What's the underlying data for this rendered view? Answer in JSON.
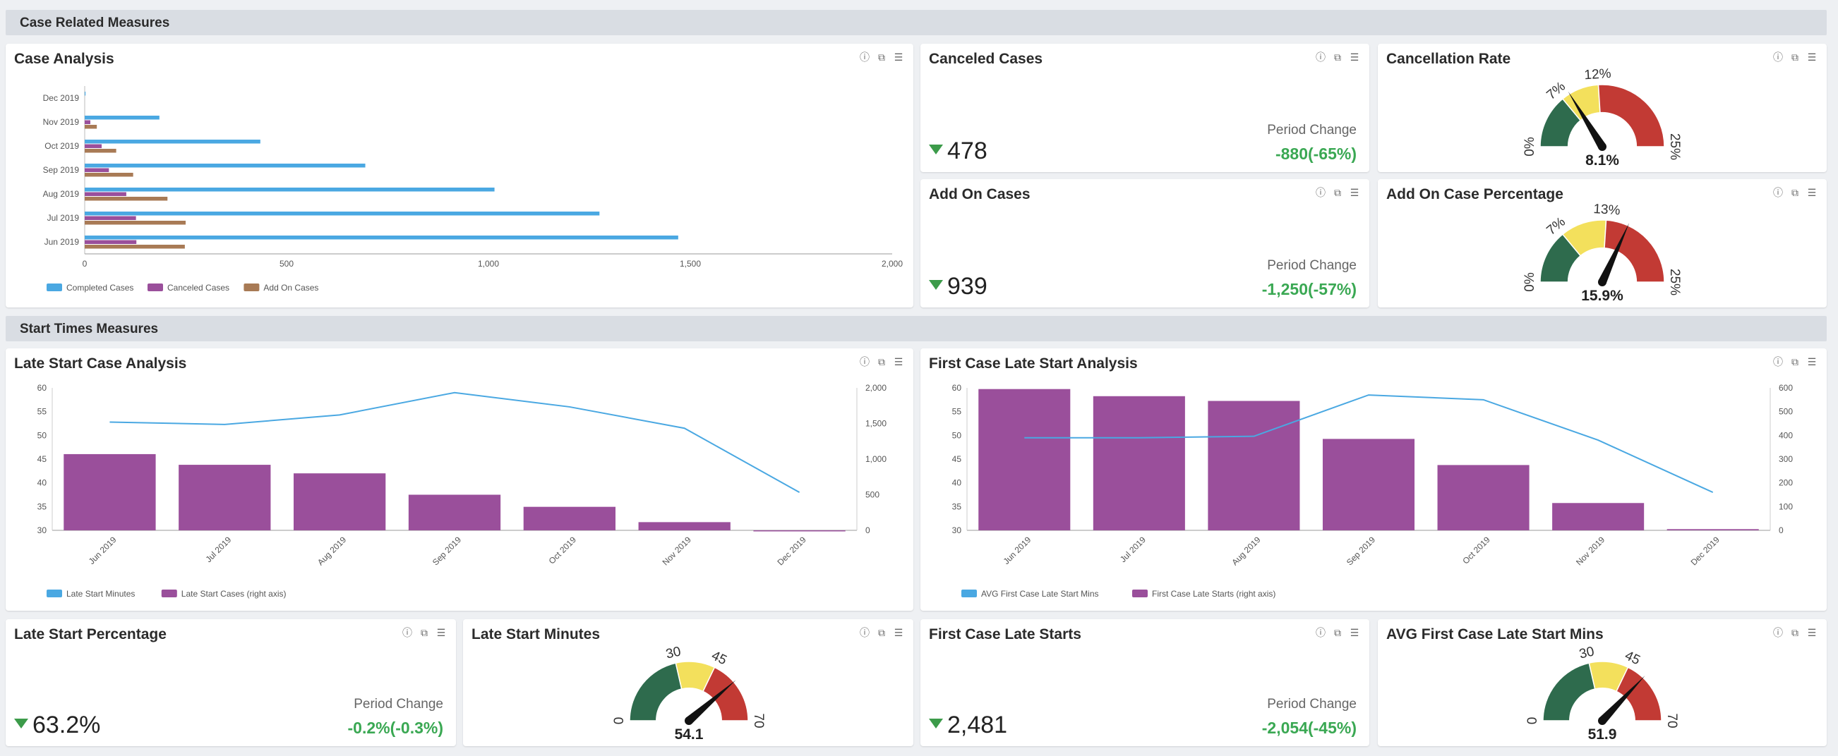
{
  "sections": {
    "case_related": "Case Related Measures",
    "start_times": "Start Times Measures"
  },
  "icons": [
    "info-icon",
    "copy-icon",
    "database-icon"
  ],
  "colors": {
    "blue": "#4aa8e2",
    "purple": "#9a4f9b",
    "brown": "#a87a55",
    "green": "#2e6b4d",
    "yellow": "#f3e05c",
    "red": "#c23a34",
    "positive": "#3aa853"
  },
  "case_analysis": {
    "title": "Case Analysis",
    "chart_data": {
      "type": "bar",
      "orientation": "horizontal",
      "categories": [
        "Dec 2019",
        "Nov 2019",
        "Oct 2019",
        "Sep 2019",
        "Aug 2019",
        "Jul 2019",
        "Jun 2019"
      ],
      "series": [
        {
          "name": "Completed Cases",
          "values": [
            2,
            185,
            435,
            695,
            1015,
            1275,
            1470
          ]
        },
        {
          "name": "Canceled Cases",
          "values": [
            0,
            14,
            42,
            60,
            103,
            127,
            128
          ]
        },
        {
          "name": "Add On Cases",
          "values": [
            0,
            30,
            78,
            120,
            205,
            250,
            248
          ]
        }
      ],
      "xlim": [
        0,
        2000
      ],
      "xticks": [
        "0",
        "500",
        "1,000",
        "1,500",
        "2,000"
      ],
      "legend": "bottom-left"
    }
  },
  "canceled_cases": {
    "title": "Canceled Cases",
    "value": "478",
    "period_change_label": "Period Change",
    "period_change": "-880(-65%)"
  },
  "add_on_cases": {
    "title": "Add On Cases",
    "value": "939",
    "period_change_label": "Period Change",
    "period_change": "-1,250(-57%)"
  },
  "cancellation_rate": {
    "title": "Cancellation Rate",
    "min": 0,
    "max": 25,
    "band1": 7,
    "band2": 12,
    "value": 8.1,
    "labels": {
      "min": "0%",
      "band1": "7%",
      "band2": "12%",
      "max": "25%",
      "value": "8.1%"
    }
  },
  "add_on_case_percentage": {
    "title": "Add On Case Percentage",
    "min": 0,
    "max": 25,
    "band1": 7,
    "band2": 13,
    "value": 15.9,
    "labels": {
      "min": "0%",
      "band1": "7%",
      "band2": "13%",
      "max": "25%",
      "value": "15.9%"
    }
  },
  "late_start_case_analysis": {
    "title": "Late Start Case Analysis",
    "chart_data": {
      "type": "bar",
      "categories": [
        "Jun 2019",
        "Jul 2019",
        "Aug 2019",
        "Sep 2019",
        "Oct 2019",
        "Nov 2019",
        "Dec 2019"
      ],
      "series": [
        {
          "name": "Late Start Cases (right axis)",
          "type": "bar",
          "axis": "right",
          "values": [
            1070,
            920,
            800,
            500,
            330,
            115,
            0
          ]
        },
        {
          "name": "Late Start Minutes",
          "type": "line",
          "axis": "left",
          "values": [
            52.8,
            52.3,
            54.3,
            59,
            56,
            51.5,
            38
          ]
        }
      ],
      "ylim_left": [
        30,
        60
      ],
      "yticks_left": [
        "30",
        "35",
        "40",
        "45",
        "50",
        "55",
        "60"
      ],
      "ylim_right": [
        0,
        2000
      ],
      "yticks_right": [
        "0",
        "500",
        "1,000",
        "1,500",
        "2,000"
      ],
      "legend": "bottom-left"
    }
  },
  "first_case_late_start_analysis": {
    "title": "First Case Late Start Analysis",
    "chart_data": {
      "type": "bar",
      "categories": [
        "Jun 2019",
        "Jul 2019",
        "Aug 2019",
        "Sep 2019",
        "Oct 2019",
        "Nov 2019",
        "Dec 2019"
      ],
      "series": [
        {
          "name": "First Case Late Starts (right axis)",
          "type": "bar",
          "axis": "right",
          "values": [
            595,
            565,
            545,
            385,
            275,
            115,
            5
          ]
        },
        {
          "name": "AVG First Case Late Start Mins",
          "type": "line",
          "axis": "left",
          "values": [
            49.5,
            49.5,
            49.8,
            58.5,
            57.5,
            49,
            38
          ]
        }
      ],
      "ylim_left": [
        30,
        60
      ],
      "yticks_left": [
        "30",
        "35",
        "40",
        "45",
        "50",
        "55",
        "60"
      ],
      "ylim_right": [
        0,
        600
      ],
      "yticks_right": [
        "0",
        "100",
        "200",
        "300",
        "400",
        "500",
        "600"
      ],
      "legend": "bottom-left"
    }
  },
  "late_start_percentage": {
    "title": "Late Start Percentage",
    "value": "63.2%",
    "period_change_label": "Period Change",
    "period_change": "-0.2%(-0.3%)"
  },
  "late_start_minutes": {
    "title": "Late Start Minutes",
    "min": 0,
    "max": 70,
    "band1": 30,
    "band2": 45,
    "value": 54.1,
    "labels": {
      "min": "0",
      "band1": "30",
      "band2": "45",
      "max": "70",
      "value": "54.1"
    }
  },
  "first_case_late_starts": {
    "title": "First Case Late Starts",
    "value": "2,481",
    "period_change_label": "Period Change",
    "period_change": "-2,054(-45%)"
  },
  "avg_first_case_late_start_mins": {
    "title": "AVG First Case Late Start Mins",
    "min": 0,
    "max": 70,
    "band1": 30,
    "band2": 45,
    "value": 51.9,
    "labels": {
      "min": "0",
      "band1": "30",
      "band2": "45",
      "max": "70",
      "value": "51.9"
    }
  }
}
